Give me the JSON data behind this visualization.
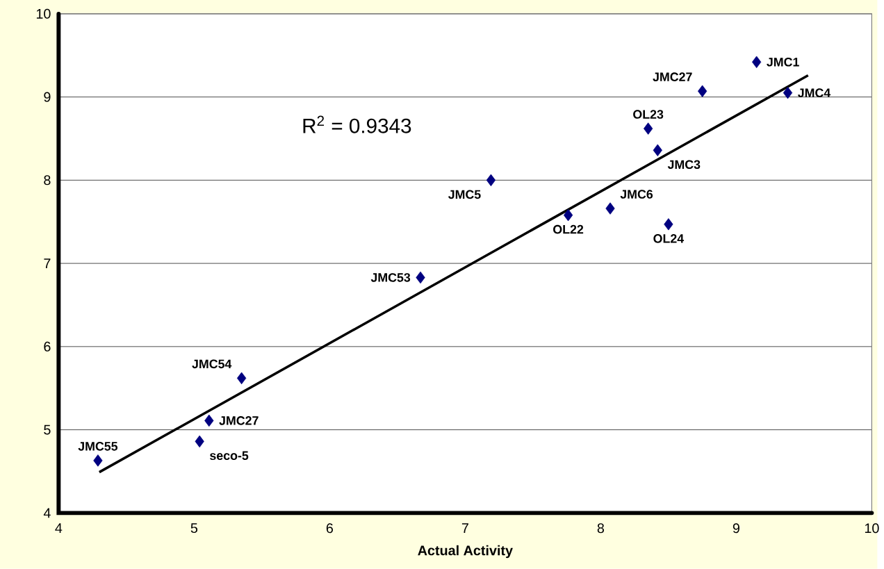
{
  "chart_data": {
    "type": "scatter",
    "xlabel": "Actual Activity",
    "xlim": [
      4,
      10
    ],
    "ylim": [
      4,
      10
    ],
    "xticks": [
      4,
      5,
      6,
      7,
      8,
      9,
      10
    ],
    "yticks": [
      4,
      5,
      6,
      7,
      8,
      9,
      10
    ],
    "grid": "y",
    "series": [
      {
        "type": "scatter",
        "color": "#000080",
        "marker": "diamond",
        "x": [
          9.15,
          9.38,
          8.75,
          8.35,
          8.42,
          7.19,
          7.76,
          8.07,
          8.5,
          6.67,
          5.35,
          5.11,
          5.04,
          4.29
        ],
        "values": [
          9.42,
          9.05,
          9.07,
          8.62,
          8.36,
          8.0,
          7.58,
          7.66,
          7.47,
          6.83,
          5.62,
          5.11,
          4.86,
          4.63
        ]
      },
      {
        "type": "line",
        "color": "#000000",
        "line_style": "solid",
        "x": [
          4.3,
          9.53
        ],
        "values": [
          4.49,
          9.26
        ]
      }
    ],
    "annotations": [
      "R$^{2}$ = 0.9343",
      {
        "text": "JMC1",
        "x": 9.15,
        "y": 9.42
      },
      {
        "text": "JMC4",
        "x": 9.38,
        "y": 9.05
      },
      {
        "text": "JMC27",
        "x": 8.75,
        "y": 9.07
      },
      {
        "text": "OL23",
        "x": 8.35,
        "y": 8.62
      },
      {
        "text": "JMC3",
        "x": 8.42,
        "y": 8.36
      },
      {
        "text": "JMC5",
        "x": 7.19,
        "y": 8.0
      },
      {
        "text": "OL22",
        "x": 7.76,
        "y": 7.58
      },
      {
        "text": "JMC6",
        "x": 8.07,
        "y": 7.66
      },
      {
        "text": "OL24",
        "x": 8.5,
        "y": 7.47
      },
      {
        "text": "JMC53",
        "x": 6.67,
        "y": 6.83
      },
      {
        "text": "JMC54",
        "x": 5.35,
        "y": 5.62
      },
      {
        "text": "JMC27",
        "x": 5.11,
        "y": 5.11
      },
      {
        "text": "seco-5",
        "x": 5.04,
        "y": 4.86
      },
      {
        "text": "JMC55",
        "x": 4.29,
        "y": 4.63
      }
    ]
  }
}
